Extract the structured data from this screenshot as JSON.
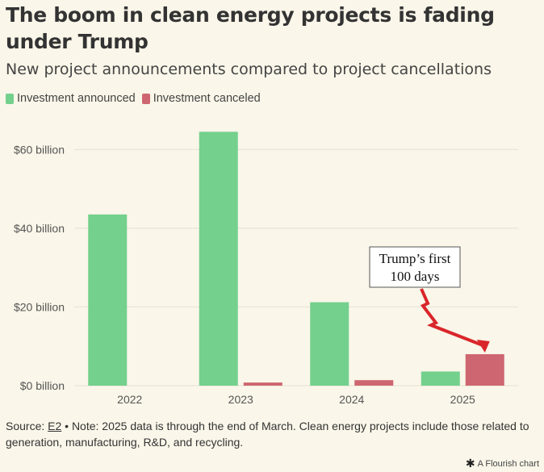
{
  "header": {
    "title": "The boom in clean energy projects is fading under Trump",
    "subtitle": "New project announcements compared to project cancellations"
  },
  "legend": [
    {
      "label": "Investment announced",
      "color": "#74d08d"
    },
    {
      "label": "Investment canceled",
      "color": "#cd6670"
    }
  ],
  "chart_data": {
    "type": "bar",
    "categories": [
      "2022",
      "2023",
      "2024",
      "2025"
    ],
    "series": [
      {
        "name": "Investment announced",
        "values": [
          43.5,
          64.5,
          21.2,
          3.6
        ],
        "color": "#74d08d"
      },
      {
        "name": "Investment canceled",
        "values": [
          0,
          0.8,
          1.4,
          8.0
        ],
        "color": "#cd6670"
      }
    ],
    "y_ticks": [
      0,
      20,
      40,
      60
    ],
    "y_tick_labels": [
      "$0 billion",
      "$20 billion",
      "$40 billion",
      "$60 billion"
    ],
    "ylim": [
      0,
      66
    ],
    "grid": true,
    "legend_position": "top-left",
    "annotation": {
      "lines": [
        "Trump’s first",
        "100 days"
      ],
      "target_category": "2025",
      "target_series": "Investment canceled"
    },
    "arrow_color": "#d9262b"
  },
  "footer": {
    "source_prefix": "Source: ",
    "source_link": "E2",
    "note": " • Note: 2025 data is through the end of March. Clean energy projects include those related to generation, manufacturing, R&D, and recycling."
  },
  "branding": {
    "icon": "flourish-asterisk-icon",
    "label": "A Flourish chart"
  }
}
